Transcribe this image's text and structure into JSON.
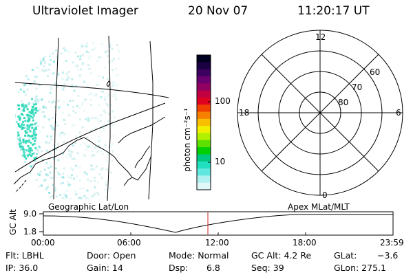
{
  "header": {
    "instrument": "Ultraviolet Imager",
    "date": "20 Nov 07",
    "time": "11:20:17 UT"
  },
  "colorbar": {
    "label": "photon cm⁻²s⁻¹",
    "ticks": [
      "100",
      "10"
    ],
    "colors": [
      "#000020",
      "#1a0040",
      "#3c0060",
      "#6a0070",
      "#900060",
      "#c00040",
      "#e00020",
      "#f04000",
      "#f88000",
      "#f8c000",
      "#f0f000",
      "#b0f000",
      "#60e000",
      "#00d000",
      "#00c880",
      "#20e0c0",
      "#60e8e0",
      "#b0f0f0",
      "#e0f8f8"
    ]
  },
  "polar_plot": {
    "labels": {
      "top": "12",
      "left": "18",
      "right": "6",
      "bottom": "0"
    },
    "ring_labels": [
      "60",
      "70",
      "80"
    ]
  },
  "timeline": {
    "left_label": "Geographic Lat/Lon",
    "right_label": "Apex  MLat/MLT",
    "ylabel": "GC Alt",
    "y_ticks": [
      "9.0",
      "1.8"
    ],
    "x_ticks": [
      "00:00",
      "06:00",
      "12:00",
      "18:00",
      "23:59"
    ],
    "current_time_marker": "11:20:17",
    "marker_color": "#cc2222"
  },
  "info": {
    "flt": "Flt: LBHL",
    "ip": "IP: 36.0",
    "door": "Door: Open",
    "gain": "Gain: 14",
    "mode": "Mode: Normal",
    "dsp_label": "Dsp:",
    "dsp_value": "6.8",
    "gc_alt": "GC Alt: 4.2 Re",
    "seq": "Seq: 39",
    "glat_label": "GLat:",
    "glat_value": "−3.6",
    "glon": "GLon: 275.1"
  }
}
